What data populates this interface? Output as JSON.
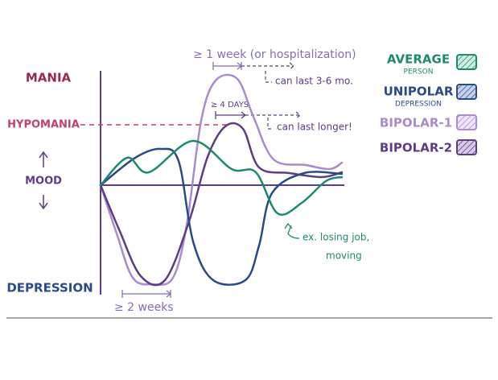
{
  "labels": {
    "mania": "MANIA",
    "hypomania": "HYPOMANIA",
    "mood": "MOOD",
    "depression": "DEPRESSION"
  },
  "annotations": {
    "bipolar1_duration": "≥ 1 week (or hospitalization)",
    "bipolar1_extent": "can last 3-6 mo.",
    "bipolar2_duration": "≥ 4 DAYS",
    "bipolar2_extent": "can last longer!",
    "trigger": [
      "ex. losing job,",
      "moving"
    ],
    "depression_duration": "≥ 2 weeks"
  },
  "legend": [
    {
      "name": "AVERAGE",
      "sub": "PERSON"
    },
    {
      "name": "UNIPOLAR",
      "sub": "DEPRESSION"
    },
    {
      "name": "BIPOLAR-1"
    },
    {
      "name": "BIPOLAR-2"
    }
  ]
}
